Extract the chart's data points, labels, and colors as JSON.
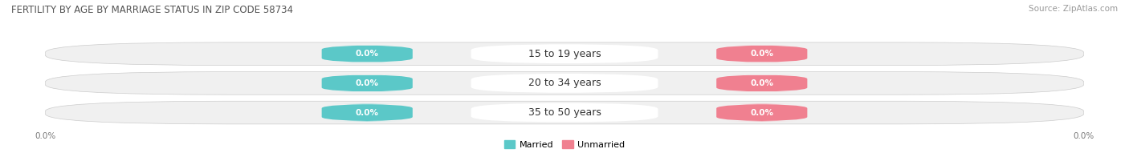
{
  "title": "FERTILITY BY AGE BY MARRIAGE STATUS IN ZIP CODE 58734",
  "source": "Source: ZipAtlas.com",
  "categories": [
    "15 to 19 years",
    "20 to 34 years",
    "35 to 50 years"
  ],
  "married_values": [
    0.0,
    0.0,
    0.0
  ],
  "unmarried_values": [
    0.0,
    0.0,
    0.0
  ],
  "married_color": "#5BC8C8",
  "unmarried_color": "#F08090",
  "bar_bg_color": "#E8E8E8",
  "title_fontsize": 8.5,
  "source_fontsize": 7.5,
  "label_fontsize": 7.5,
  "cat_fontsize": 9,
  "x_tick_label_left": "0.0%",
  "x_tick_label_right": "0.0%",
  "legend_married": "Married",
  "legend_unmarried": "Unmarried"
}
